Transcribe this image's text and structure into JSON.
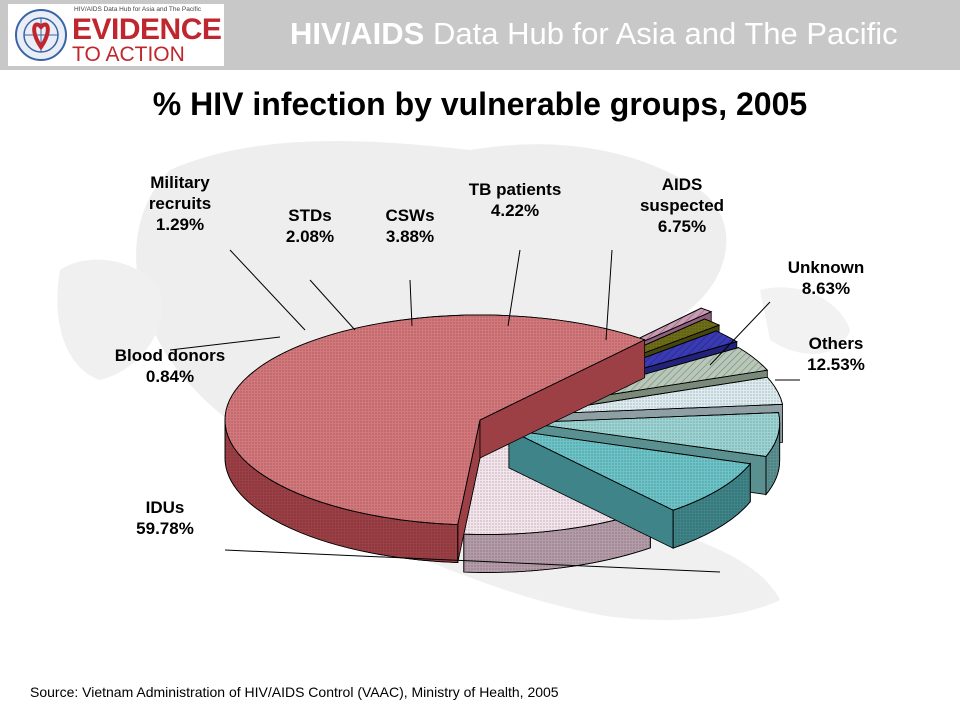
{
  "header": {
    "logo_small_text": "HIV/AIDS Data Hub for Asia and The Pacific",
    "logo_line1": "EVIDENCE",
    "logo_line2": "TO ACTION",
    "title_bold": "HIV/AIDS",
    "title_rest": " Data Hub for Asia and The Pacific"
  },
  "page": {
    "title": "% HIV infection by vulnerable groups, 2005"
  },
  "chart_data": {
    "type": "pie",
    "title": "% HIV infection by vulnerable groups, 2005",
    "unit": "%",
    "slices": [
      {
        "label": [
          "IDUs"
        ],
        "value": 59.78,
        "display": "59.78%",
        "color": "#d4787c",
        "side": "#9c4046"
      },
      {
        "label": [
          "Blood donors"
        ],
        "value": 0.84,
        "display": "0.84%",
        "color": "#c89ab4",
        "side": "#8e5f7c"
      },
      {
        "label": [
          "Military",
          "recruits"
        ],
        "value": 1.29,
        "display": "1.29%",
        "color": "#6e6e18",
        "side": "#454510"
      },
      {
        "label": [
          "STDs"
        ],
        "value": 2.08,
        "display": "2.08%",
        "color": "#3a3ab4",
        "side": "#22227a"
      },
      {
        "label": [
          "CSWs"
        ],
        "value": 3.88,
        "display": "3.88%",
        "color": "#b8c8b8",
        "side": "#7a8a7a"
      },
      {
        "label": [
          "TB patients"
        ],
        "value": 4.22,
        "display": "4.22%",
        "color": "#dcecf0",
        "side": "#8fa0a4"
      },
      {
        "label": [
          "AIDS",
          "suspected"
        ],
        "value": 6.75,
        "display": "6.75%",
        "color": "#9cd4d4",
        "side": "#5a9090"
      },
      {
        "label": [
          "Unknown"
        ],
        "value": 8.63,
        "display": "8.63%",
        "color": "#6cc4c8",
        "side": "#3e8488"
      },
      {
        "label": [
          "Others"
        ],
        "value": 12.53,
        "display": "12.53%",
        "color": "#f4e4ec",
        "side": "#b49ca8"
      }
    ]
  },
  "source": "Source: Vietnam Administration of HIV/AIDS Control (VAAC), Ministry of Health, 2005"
}
